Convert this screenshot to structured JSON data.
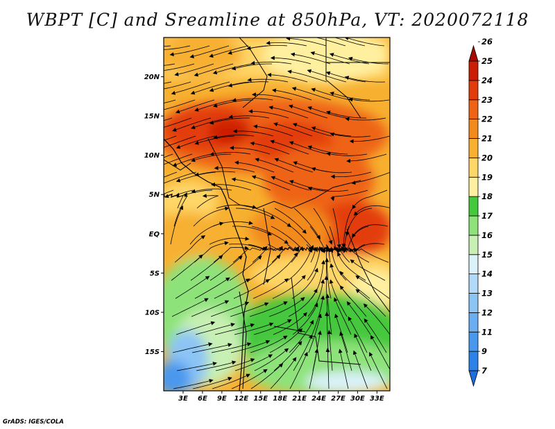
{
  "title": "WBPT [C] and Sreamline at 850hPa, VT: 2020072118",
  "footer": "GrADS: IGES/COLA",
  "map": {
    "variable": "WBPT",
    "units": "C",
    "level": "850hPa",
    "valid_time": "2020072118",
    "lat_labels": [
      "20N",
      "15N",
      "10N",
      "5N",
      "EQ",
      "5S",
      "10S",
      "15S"
    ],
    "lat_values": [
      20,
      15,
      10,
      5,
      0,
      -5,
      -10,
      -15
    ],
    "lon_labels": [
      "3E",
      "6E",
      "9E",
      "12E",
      "15E",
      "18E",
      "21E",
      "24E",
      "27E",
      "30E",
      "33E"
    ],
    "lon_values": [
      3,
      6,
      9,
      12,
      15,
      18,
      21,
      24,
      27,
      30,
      33
    ],
    "lat_range": [
      -20,
      25
    ],
    "lon_range": [
      0,
      35
    ]
  },
  "colorbar": {
    "levels": [
      "7",
      "9",
      "11",
      "12",
      "13",
      "14",
      "15",
      "16",
      "17",
      "18",
      "19",
      "20",
      "21",
      "22",
      "23",
      "24",
      "25",
      "26"
    ],
    "colors": [
      "#1e6ee0",
      "#2d82ea",
      "#4a98ee",
      "#6aaef2",
      "#8cc4f5",
      "#b2daf8",
      "#dcf2fa",
      "#c8f0b4",
      "#8ee27a",
      "#44c83c",
      "#fff0a0",
      "#ffd668",
      "#f7b030",
      "#f28a1c",
      "#ee6414",
      "#e33c0c",
      "#cc1e06",
      "#a50a00"
    ]
  }
}
